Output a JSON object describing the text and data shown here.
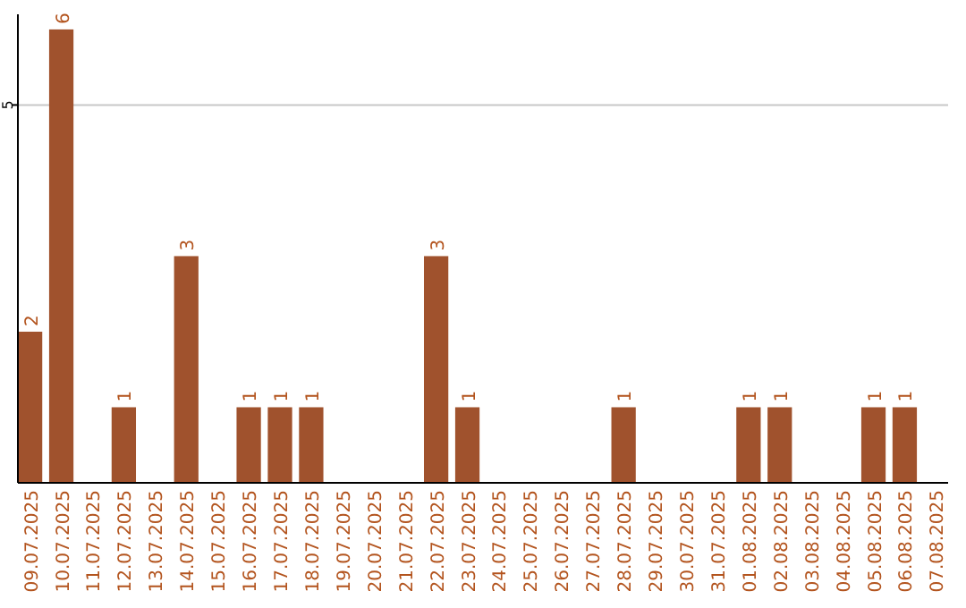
{
  "chart_data": {
    "type": "bar",
    "categories": [
      "09.07.2025",
      "10.07.2025",
      "11.07.2025",
      "12.07.2025",
      "13.07.2025",
      "14.07.2025",
      "15.07.2025",
      "16.07.2025",
      "17.07.2025",
      "18.07.2025",
      "19.07.2025",
      "20.07.2025",
      "21.07.2025",
      "22.07.2025",
      "23.07.2025",
      "24.07.2025",
      "25.07.2025",
      "26.07.2025",
      "27.07.2025",
      "28.07.2025",
      "29.07.2025",
      "30.07.2025",
      "31.07.2025",
      "01.08.2025",
      "02.08.2025",
      "03.08.2025",
      "04.08.2025",
      "05.08.2025",
      "06.08.2025",
      "07.08.2025"
    ],
    "values": [
      2,
      6,
      0,
      1,
      0,
      3,
      0,
      1,
      1,
      1,
      0,
      0,
      0,
      3,
      1,
      0,
      0,
      0,
      0,
      1,
      0,
      0,
      0,
      1,
      1,
      0,
      0,
      1,
      1,
      0
    ],
    "value_labels": [
      "2",
      "6",
      null,
      "1",
      null,
      "3",
      null,
      "1",
      "1",
      "1",
      null,
      null,
      null,
      "3",
      "1",
      null,
      null,
      null,
      null,
      "1",
      null,
      null,
      null,
      "1",
      "1",
      null,
      null,
      "1",
      "1",
      null
    ],
    "color": "#a0522d",
    "ylim": [
      0,
      6.2
    ],
    "yticks": [
      5
    ],
    "grid": "y"
  }
}
